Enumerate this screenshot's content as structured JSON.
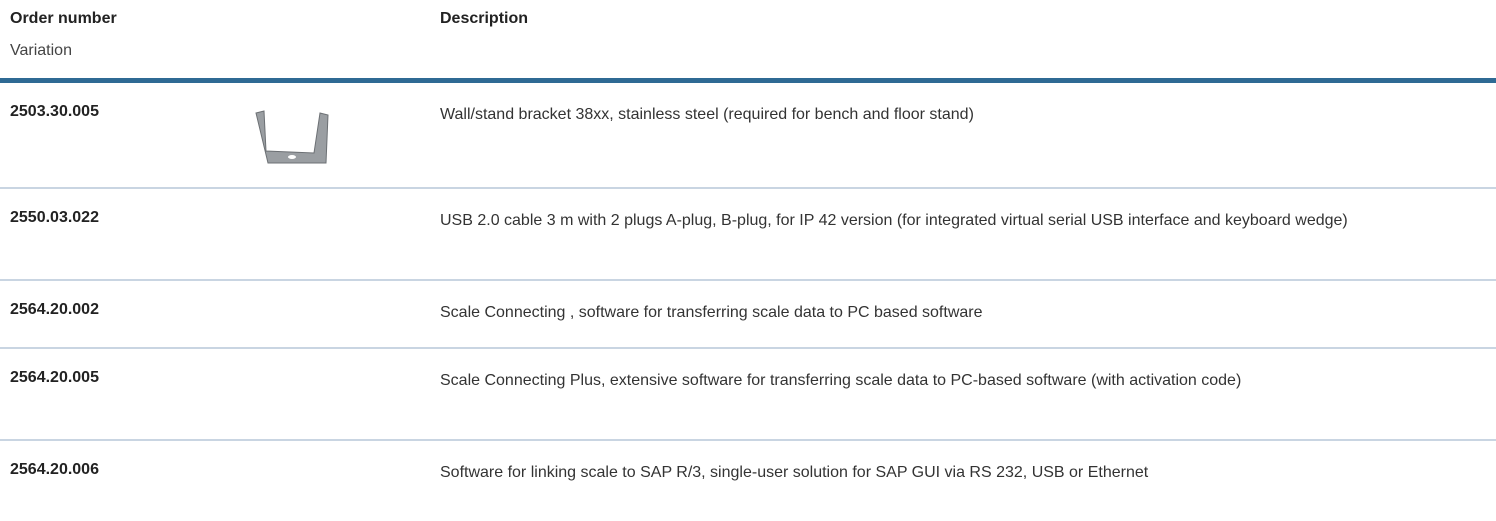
{
  "table": {
    "header": {
      "order_number": "Order number",
      "variation": "Variation",
      "description": "Description"
    },
    "rows": [
      {
        "order": "2503.30.005",
        "description": "Wall/stand bracket 38xx, stainless steel (required for bench and floor stand)"
      },
      {
        "order": "2550.03.022",
        "description": "USB 2.0 cable 3 m with 2 plugs A-plug, B-plug, for IP 42 version (for integrated virtual serial USB interface and keyboard wedge)"
      },
      {
        "order": "2564.20.002",
        "description": "Scale Connecting , software for transferring scale data to PC based software"
      },
      {
        "order": "2564.20.005",
        "description": "Scale Connecting Plus, extensive software for transferring scale data to PC-based software (with activation code)"
      },
      {
        "order": "2564.20.006",
        "description": "Software for linking scale to SAP R/3, single-user solution for SAP GUI via RS 232, USB or Ethernet"
      }
    ]
  }
}
